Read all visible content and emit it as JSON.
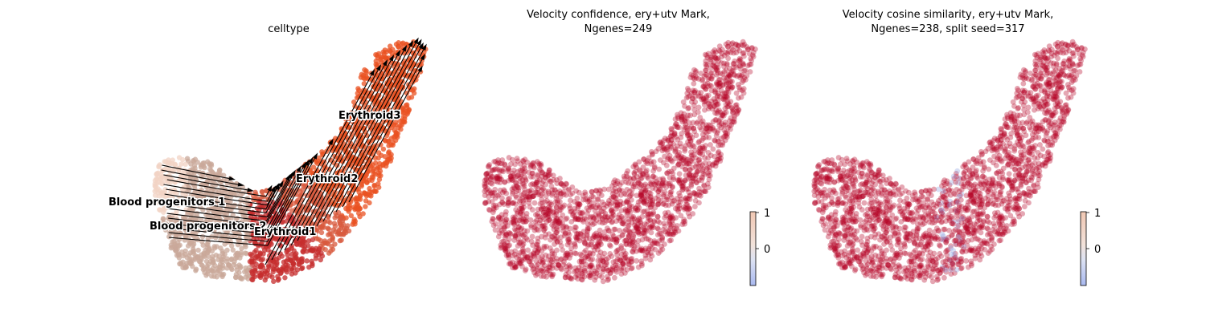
{
  "chart_data": [
    {
      "type": "scatter",
      "title": "celltype",
      "overlay": "velocity streamlines with arrowheads (black)",
      "clusters": [
        {
          "name": "Blood progenitors 1",
          "color": "#f2d3c4"
        },
        {
          "name": "Blood progenitors 2",
          "color": "#c9a899"
        },
        {
          "name": "Erythroid1",
          "color": "#c62d2d"
        },
        {
          "name": "Erythroid2",
          "color": "#d85a3e"
        },
        {
          "name": "Erythroid3",
          "color": "#ea5121"
        }
      ],
      "axes": "off",
      "legend": "on data"
    },
    {
      "type": "scatter",
      "title_line1": "Velocity confidence, ery+utv Mark,",
      "title_line2": "Ngenes=249",
      "colormap": "coolwarm",
      "colorbar": {
        "ticks": [
          "1",
          "0"
        ]
      },
      "dominant_color": "#b40426",
      "axes": "off"
    },
    {
      "type": "scatter",
      "title_line1": "Velocity cosine similarity, ery+utv Mark,",
      "title_line2": "Ngenes=238, split seed=317",
      "colormap": "coolwarm",
      "colorbar": {
        "ticks": [
          "1",
          "0"
        ]
      },
      "dominant_color": "#b40426",
      "low_value_color": "#8da0e0",
      "axes": "off"
    }
  ]
}
